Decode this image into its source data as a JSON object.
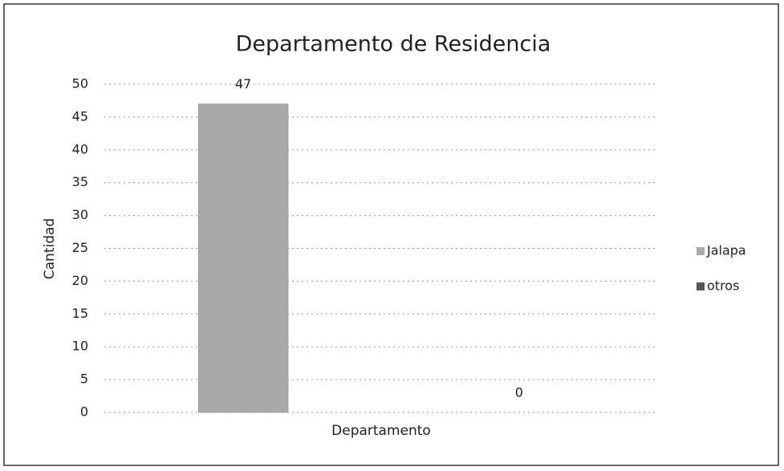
{
  "chart_data": {
    "type": "bar",
    "title": "Departamento de Residencia",
    "x_label": "Departamento",
    "y_label": "Cantidad",
    "categories": [
      null
    ],
    "series": [
      {
        "name": "Jalapa",
        "color": "#a9a9a9",
        "values": [
          47
        ]
      },
      {
        "name": "otros",
        "color": "#555555",
        "values": [
          0
        ]
      }
    ],
    "ylim": [
      0,
      50
    ],
    "yticks": [
      0,
      5,
      10,
      15,
      20,
      25,
      30,
      35,
      40,
      45,
      50
    ],
    "grid": true,
    "legend": "right",
    "data_labels": true
  }
}
